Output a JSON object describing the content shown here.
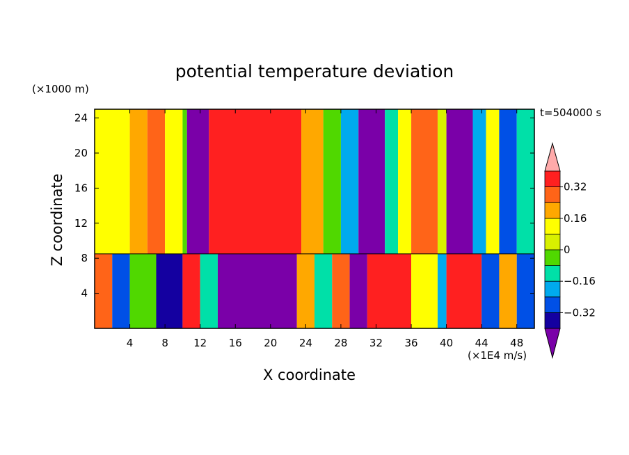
{
  "chart_data": {
    "type": "heatmap",
    "title": "potential temperature deviation",
    "xlabel": "X coordinate",
    "ylabel": "Z coordinate",
    "x_unit": "(×1E4 m/s)",
    "y_unit": "(×1000 m)",
    "time_label": "t=504000 s",
    "xlim": [
      0,
      50
    ],
    "ylim": [
      0,
      25
    ],
    "x_ticks": [
      "4",
      "8",
      "12",
      "16",
      "20",
      "24",
      "28",
      "32",
      "36",
      "40",
      "44",
      "48"
    ],
    "y_ticks": [
      "4",
      "8",
      "12",
      "16",
      "20",
      "24"
    ],
    "colorbar": {
      "levels": [
        -0.4,
        -0.32,
        -0.24,
        -0.16,
        -0.08,
        0,
        0.08,
        0.16,
        0.24,
        0.32,
        0.4
      ],
      "tick_labels": [
        "0.32",
        "0.16",
        "0",
        "−0.16",
        "−0.32"
      ],
      "colors": [
        "#7a00a8",
        "#1400a0",
        "#0050e6",
        "#00aaee",
        "#00e0a8",
        "#50d800",
        "#d8f000",
        "#ffff00",
        "#ffa800",
        "#ff6418",
        "#ff2020",
        "#ffaaaa"
      ]
    },
    "upper_layer_columns": [
      {
        "x": [
          0,
          4
        ],
        "value": 0.14
      },
      {
        "x": [
          4,
          6
        ],
        "value": 0.22
      },
      {
        "x": [
          6,
          8
        ],
        "value": 0.3
      },
      {
        "x": [
          8,
          10
        ],
        "value": 0.14
      },
      {
        "x": [
          10,
          10.5
        ],
        "value": 0.0
      },
      {
        "x": [
          10.5,
          13
        ],
        "value": -0.4
      },
      {
        "x": [
          13,
          23.5
        ],
        "value": 0.4
      },
      {
        "x": [
          23.5,
          26
        ],
        "value": 0.2
      },
      {
        "x": [
          26,
          28
        ],
        "value": -0.05
      },
      {
        "x": [
          28,
          30
        ],
        "value": -0.2
      },
      {
        "x": [
          30,
          33
        ],
        "value": -0.4
      },
      {
        "x": [
          33,
          34.5
        ],
        "value": -0.12
      },
      {
        "x": [
          34.5,
          36
        ],
        "value": 0.1
      },
      {
        "x": [
          36,
          39
        ],
        "value": 0.26
      },
      {
        "x": [
          39,
          40
        ],
        "value": 0.05
      },
      {
        "x": [
          40,
          43
        ],
        "value": -0.4
      },
      {
        "x": [
          43,
          44.5
        ],
        "value": -0.2
      },
      {
        "x": [
          44.5,
          46
        ],
        "value": 0.1
      },
      {
        "x": [
          46,
          48
        ],
        "value": -0.26
      },
      {
        "x": [
          48,
          50
        ],
        "value": -0.12
      }
    ],
    "lower_layer_columns": [
      {
        "x": [
          0,
          2
        ],
        "value": 0.3
      },
      {
        "x": [
          2,
          4
        ],
        "value": -0.3
      },
      {
        "x": [
          4,
          7
        ],
        "value": -0.05
      },
      {
        "x": [
          7,
          10
        ],
        "value": -0.35
      },
      {
        "x": [
          10,
          12
        ],
        "value": 0.4
      },
      {
        "x": [
          12,
          14
        ],
        "value": -0.12
      },
      {
        "x": [
          14,
          23
        ],
        "value": -0.4
      },
      {
        "x": [
          23,
          25
        ],
        "value": 0.2
      },
      {
        "x": [
          25,
          27
        ],
        "value": -0.1
      },
      {
        "x": [
          27,
          29
        ],
        "value": 0.3
      },
      {
        "x": [
          29,
          31
        ],
        "value": -0.4
      },
      {
        "x": [
          31,
          36
        ],
        "value": 0.38
      },
      {
        "x": [
          36,
          39
        ],
        "value": 0.1
      },
      {
        "x": [
          39,
          40
        ],
        "value": -0.2
      },
      {
        "x": [
          40,
          44
        ],
        "value": 0.4
      },
      {
        "x": [
          44,
          46
        ],
        "value": -0.25
      },
      {
        "x": [
          46,
          48
        ],
        "value": 0.2
      },
      {
        "x": [
          48,
          50
        ],
        "value": -0.3
      }
    ],
    "interface_z": 8.5
  }
}
